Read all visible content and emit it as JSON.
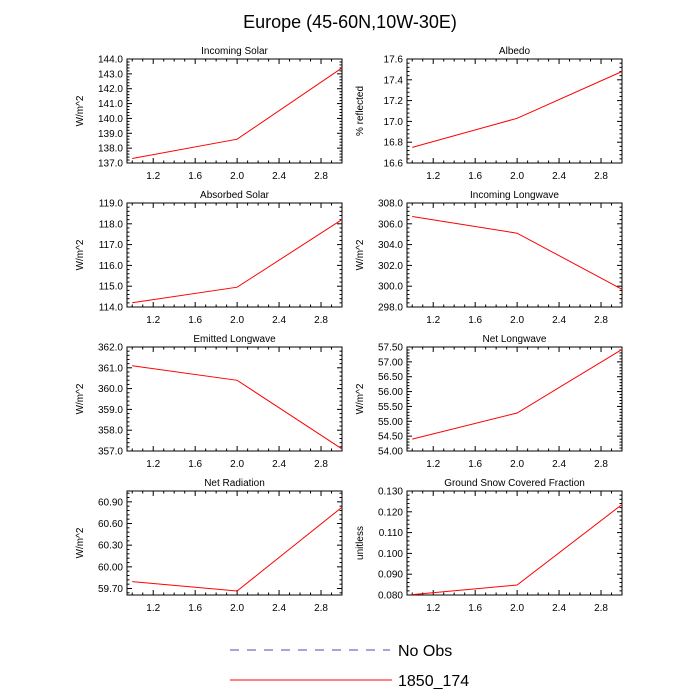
{
  "title": "Europe (45-60N,10W-30E)",
  "colors": {
    "series": "#ff0000",
    "obs": "#4b4bb4",
    "axis": "#000000"
  },
  "legend": {
    "obs_label": "No Obs",
    "model_label": "1850_174"
  },
  "chart_data": [
    {
      "type": "line",
      "title": "Incoming Solar",
      "xlabel": "",
      "ylabel": "W/m^2",
      "x": [
        1,
        2,
        3
      ],
      "values": [
        137.3,
        138.6,
        143.4
      ],
      "xlim": [
        0.95,
        3.0
      ],
      "ylim": [
        137.0,
        144.0
      ],
      "xticks": [
        "1.2",
        "1.6",
        "2.0",
        "2.4",
        "2.8"
      ],
      "yticks": [
        "137.0",
        "138.0",
        "139.0",
        "140.0",
        "141.0",
        "142.0",
        "143.0",
        "144.0"
      ]
    },
    {
      "type": "line",
      "title": "Albedo",
      "xlabel": "",
      "ylabel": "% reflected",
      "x": [
        1,
        2,
        3
      ],
      "values": [
        16.75,
        17.03,
        17.48
      ],
      "xlim": [
        0.95,
        3.0
      ],
      "ylim": [
        16.6,
        17.6
      ],
      "xticks": [
        "1.2",
        "1.6",
        "2.0",
        "2.4",
        "2.8"
      ],
      "yticks": [
        "16.6",
        "16.8",
        "17.0",
        "17.2",
        "17.4",
        "17.6"
      ]
    },
    {
      "type": "line",
      "title": "Absorbed Solar",
      "xlabel": "",
      "ylabel": "W/m^2",
      "x": [
        1,
        2,
        3
      ],
      "values": [
        114.2,
        114.95,
        118.2
      ],
      "xlim": [
        0.95,
        3.0
      ],
      "ylim": [
        114.0,
        119.0
      ],
      "xticks": [
        "1.2",
        "1.6",
        "2.0",
        "2.4",
        "2.8"
      ],
      "yticks": [
        "114.0",
        "115.0",
        "116.0",
        "117.0",
        "118.0",
        "119.0"
      ]
    },
    {
      "type": "line",
      "title": "Incoming Longwave",
      "xlabel": "",
      "ylabel": "W/m^2",
      "x": [
        1,
        2,
        3
      ],
      "values": [
        306.7,
        305.1,
        299.7
      ],
      "xlim": [
        0.95,
        3.0
      ],
      "ylim": [
        298.0,
        308.0
      ],
      "xticks": [
        "1.2",
        "1.6",
        "2.0",
        "2.4",
        "2.8"
      ],
      "yticks": [
        "298.0",
        "300.0",
        "302.0",
        "304.0",
        "306.0",
        "308.0"
      ]
    },
    {
      "type": "line",
      "title": "Emitted Longwave",
      "xlabel": "",
      "ylabel": "W/m^2",
      "x": [
        1,
        2,
        3
      ],
      "values": [
        361.1,
        360.4,
        357.1
      ],
      "xlim": [
        0.95,
        3.0
      ],
      "ylim": [
        357.0,
        362.0
      ],
      "xticks": [
        "1.2",
        "1.6",
        "2.0",
        "2.4",
        "2.8"
      ],
      "yticks": [
        "357.0",
        "358.0",
        "359.0",
        "360.0",
        "361.0",
        "362.0"
      ]
    },
    {
      "type": "line",
      "title": "Net Longwave",
      "xlabel": "",
      "ylabel": "W/m^2",
      "x": [
        1,
        2,
        3
      ],
      "values": [
        54.4,
        55.28,
        57.42
      ],
      "xlim": [
        0.95,
        3.0
      ],
      "ylim": [
        54.0,
        57.5
      ],
      "xticks": [
        "1.2",
        "1.6",
        "2.0",
        "2.4",
        "2.8"
      ],
      "yticks": [
        "54.00",
        "54.50",
        "55.00",
        "55.50",
        "56.00",
        "56.50",
        "57.00",
        "57.50"
      ]
    },
    {
      "type": "line",
      "title": "Net Radiation",
      "xlabel": "",
      "ylabel": "W/m^2",
      "x": [
        1,
        2,
        3
      ],
      "values": [
        59.795,
        59.665,
        60.825
      ],
      "xlim": [
        0.95,
        3.0
      ],
      "ylim": [
        59.61,
        61.05
      ],
      "xticks": [
        "1.2",
        "1.6",
        "2.0",
        "2.4",
        "2.8"
      ],
      "ytickvals": [
        59.7,
        60.0,
        60.3,
        60.6,
        60.9
      ],
      "yticks": [
        "59.70",
        "60.00",
        "60.30",
        "60.60",
        "60.90"
      ]
    },
    {
      "type": "line",
      "title": "Ground Snow Covered Fraction",
      "xlabel": "",
      "ylabel": "unitless",
      "x": [
        1,
        2,
        3
      ],
      "values": [
        0.0802,
        0.0848,
        0.1235
      ],
      "xlim": [
        0.95,
        3.0
      ],
      "ylim": [
        0.08,
        0.13
      ],
      "xticks": [
        "1.2",
        "1.6",
        "2.0",
        "2.4",
        "2.8"
      ],
      "yticks": [
        "0.080",
        "0.090",
        "0.100",
        "0.110",
        "0.120",
        "0.130"
      ]
    }
  ]
}
